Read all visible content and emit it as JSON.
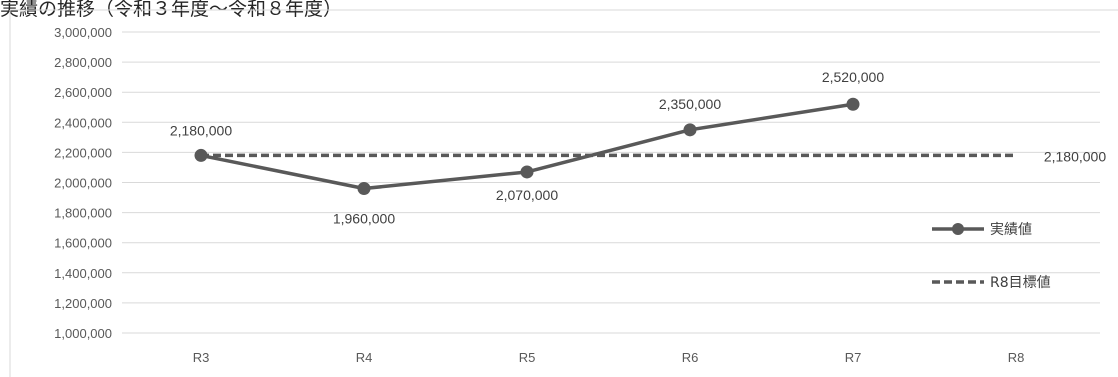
{
  "title": "実績の推移（令和３年度〜令和８年度）",
  "chart_data": {
    "type": "line",
    "categories": [
      "R3",
      "R4",
      "R5",
      "R6",
      "R7",
      "R8"
    ],
    "ylim": [
      1000000,
      3000000
    ],
    "ytick_step": 200000,
    "grid": true,
    "legend_position": "right",
    "series": [
      {
        "name": "実績値",
        "style": "solid-markers",
        "color": "#595959",
        "values": [
          2180000,
          1960000,
          2070000,
          2350000,
          2520000,
          null
        ],
        "labels": [
          "2,180,000",
          "1,960,000",
          "2,070,000",
          "2,350,000",
          "2,520,000",
          null
        ]
      },
      {
        "name": "R8目標値",
        "style": "dashed",
        "color": "#595959",
        "values": [
          2180000,
          2180000,
          2180000,
          2180000,
          2180000,
          2180000
        ],
        "labels": [
          null,
          null,
          null,
          null,
          null,
          "2,180,000"
        ]
      }
    ]
  }
}
